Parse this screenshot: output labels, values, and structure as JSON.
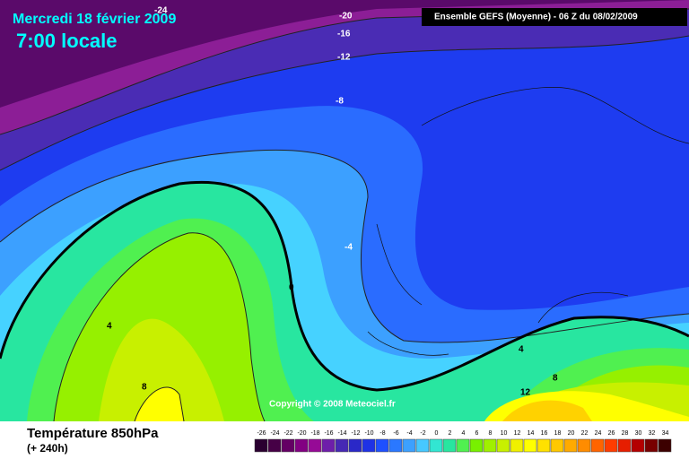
{
  "header": {
    "date": "Mercredi 18 février 2009",
    "time": "7:00 locale",
    "model": "Ensemble GEFS (Moyenne)  - 06 Z du 08/02/2009"
  },
  "contour_labels": [
    "-24",
    "-20",
    "-16",
    "-12",
    "-8",
    "-4",
    "0",
    "4",
    "8",
    "4",
    "8",
    "12"
  ],
  "copyright": "Copyright © 2008 Meteociel.fr",
  "footer": {
    "title": "Température 850hPa",
    "subtitle": "(+ 240h)"
  },
  "colorbar": {
    "labels": [
      -26,
      -24,
      -22,
      -20,
      -18,
      -16,
      -14,
      -12,
      -10,
      -8,
      -6,
      -4,
      -2,
      0,
      2,
      4,
      6,
      8,
      10,
      12,
      14,
      16,
      18,
      20,
      22,
      24,
      26,
      28,
      30,
      32,
      34
    ]
  }
}
